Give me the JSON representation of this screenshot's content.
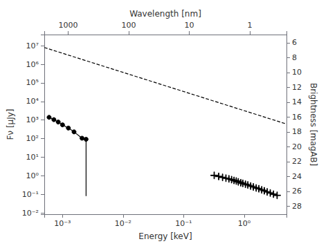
{
  "chart_data": {
    "type": "line",
    "log": true,
    "grid": false,
    "color": "#000000",
    "xlabel": "Energy [keV]",
    "ylabel": "Fν [μJy]",
    "x2label": "Wavelength [nm]",
    "y2label": "Brightness [magAB]",
    "xlim": [
      0.0005,
      5
    ],
    "xticks": [
      {
        "value": 0.001,
        "label": "10⁻³"
      },
      {
        "value": 0.01,
        "label": "10⁻²"
      },
      {
        "value": 0.1,
        "label": "10⁻¹"
      },
      {
        "value": 1,
        "label": "10⁰"
      }
    ],
    "x2lim": [
      2479.68,
      0.247968
    ],
    "x2ticks": [
      1000,
      100,
      10,
      1
    ],
    "ylim": [
      0.0085,
      40000000
    ],
    "yticks": [
      {
        "value": 0.01,
        "label": "10⁻²"
      },
      {
        "value": 0.1,
        "label": "10⁻¹"
      },
      {
        "value": 1,
        "label": "10⁰"
      },
      {
        "value": 10,
        "label": "10¹"
      },
      {
        "value": 100,
        "label": "10²"
      },
      {
        "value": 1000,
        "label": "10³"
      },
      {
        "value": 10000,
        "label": "10⁴"
      },
      {
        "value": 100000,
        "label": "10⁵"
      },
      {
        "value": 1000000,
        "label": "10⁶"
      },
      {
        "value": 10000000,
        "label": "10⁷"
      }
    ],
    "y2lim": [
      29.076453,
      4.89485
    ],
    "y2ticks": [
      6,
      8,
      10,
      12,
      14,
      16,
      18,
      20,
      22,
      24,
      26,
      28
    ],
    "series": [
      {
        "type": "line",
        "line_style": "dashed",
        "marker": "none",
        "x": [
          0.0005,
          5
        ],
        "values": [
          8039155,
          609.83
        ]
      },
      {
        "type": "line",
        "line_style": "solid",
        "marker": "circle",
        "x": [
          0.0006,
          0.00072,
          0.00085,
          0.001,
          0.00125,
          0.00155,
          0.0021,
          0.00245
        ],
        "values": [
          1400,
          1050,
          780,
          550,
          370,
          230,
          105,
          92
        ],
        "xerr": [
          4e-05,
          5e-05,
          6e-05,
          7e-05,
          9e-05,
          0.00011,
          0.00014,
          0.00014
        ],
        "yerr": [
          35,
          28,
          22,
          17,
          13,
          10,
          8,
          7
        ]
      },
      {
        "type": "line",
        "line_style": "solid",
        "marker": "none",
        "x": [
          0.00245,
          0.00245
        ],
        "values": [
          92,
          0.08
        ]
      },
      {
        "type": "line",
        "line_style": "solid",
        "marker": "plus",
        "x": [
          0.32,
          0.38,
          0.44,
          0.5,
          0.56,
          0.62,
          0.68,
          0.74,
          0.8,
          0.88,
          0.95,
          1.05,
          1.15,
          1.28,
          1.42,
          1.58,
          1.75,
          1.95,
          2.15,
          2.4,
          2.7,
          3.05,
          3.5
        ],
        "values": [
          1.05,
          0.92,
          0.82,
          0.74,
          0.68,
          0.62,
          0.56,
          0.52,
          0.47,
          0.42,
          0.39,
          0.35,
          0.32,
          0.28,
          0.25,
          0.22,
          0.2,
          0.175,
          0.155,
          0.135,
          0.118,
          0.102,
          0.088
        ],
        "xerr": [
          0.04,
          0.04,
          0.04,
          0.04,
          0.04,
          0.04,
          0.04,
          0.04,
          0.04,
          0.04,
          0.04,
          0.05,
          0.05,
          0.06,
          0.07,
          0.08,
          0.09,
          0.1,
          0.11,
          0.13,
          0.15,
          0.18,
          0.22
        ],
        "yerr": [
          0.12,
          0.1,
          0.09,
          0.08,
          0.07,
          0.06,
          0.06,
          0.06,
          0.05,
          0.05,
          0.05,
          0.05,
          0.04,
          0.04,
          0.04,
          0.04,
          0.03,
          0.03,
          0.03,
          0.03,
          0.03,
          0.02,
          0.02
        ]
      }
    ]
  }
}
